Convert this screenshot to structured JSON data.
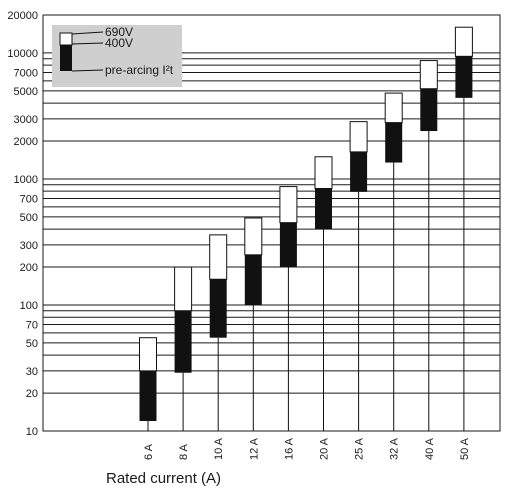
{
  "chart_data": {
    "type": "bar",
    "yscale": "log",
    "ylim": [
      10,
      20000
    ],
    "xlabel": "Rated current (A)",
    "ylabel": "",
    "y_ticks": [
      "10",
      "20",
      "30",
      "50",
      "70",
      "100",
      "200",
      "300",
      "500",
      "700",
      "1000",
      "2000",
      "3000",
      "5000",
      "7000",
      "10000",
      "20000"
    ],
    "y_tick_values": [
      10,
      20,
      30,
      50,
      70,
      100,
      200,
      300,
      500,
      700,
      1000,
      2000,
      3000,
      5000,
      7000,
      10000,
      20000
    ],
    "categories": [
      "6 A",
      "8 A",
      "10 A",
      "12 A",
      "16 A",
      "20 A",
      "25 A",
      "32 A",
      "40 A",
      "50 A"
    ],
    "series": [
      {
        "name": "pre-arcing I²t",
        "bottom": [
          12,
          29,
          55,
          100,
          200,
          400,
          790,
          1350,
          2400,
          4400
        ],
        "top": [
          30,
          90,
          160,
          250,
          450,
          840,
          1640,
          2800,
          5200,
          9400
        ]
      },
      {
        "name": "400V",
        "bottom": [
          30,
          90,
          160,
          250,
          450,
          840,
          1640,
          2800,
          5200,
          9400
        ],
        "top": [
          30,
          90,
          160,
          250,
          450,
          840,
          1640,
          2800,
          5200,
          9400
        ]
      },
      {
        "name": "690V",
        "bottom": [
          30,
          90,
          160,
          250,
          450,
          840,
          1640,
          2800,
          5200,
          9400
        ],
        "top": [
          55,
          200,
          360,
          490,
          870,
          1500,
          2850,
          4800,
          8700,
          16000
        ]
      }
    ],
    "legend": {
      "position": "top-left",
      "labels": [
        "690V",
        "400V",
        "pre-arcing I²t"
      ]
    },
    "grid": true,
    "colors": {
      "background": "#ffffff",
      "grid": "#1a1a1a",
      "bar_dark": "#111111",
      "bar_light": "#ffffff",
      "legend_bg": "#cfcfcf",
      "text": "#1a1a1a"
    }
  }
}
